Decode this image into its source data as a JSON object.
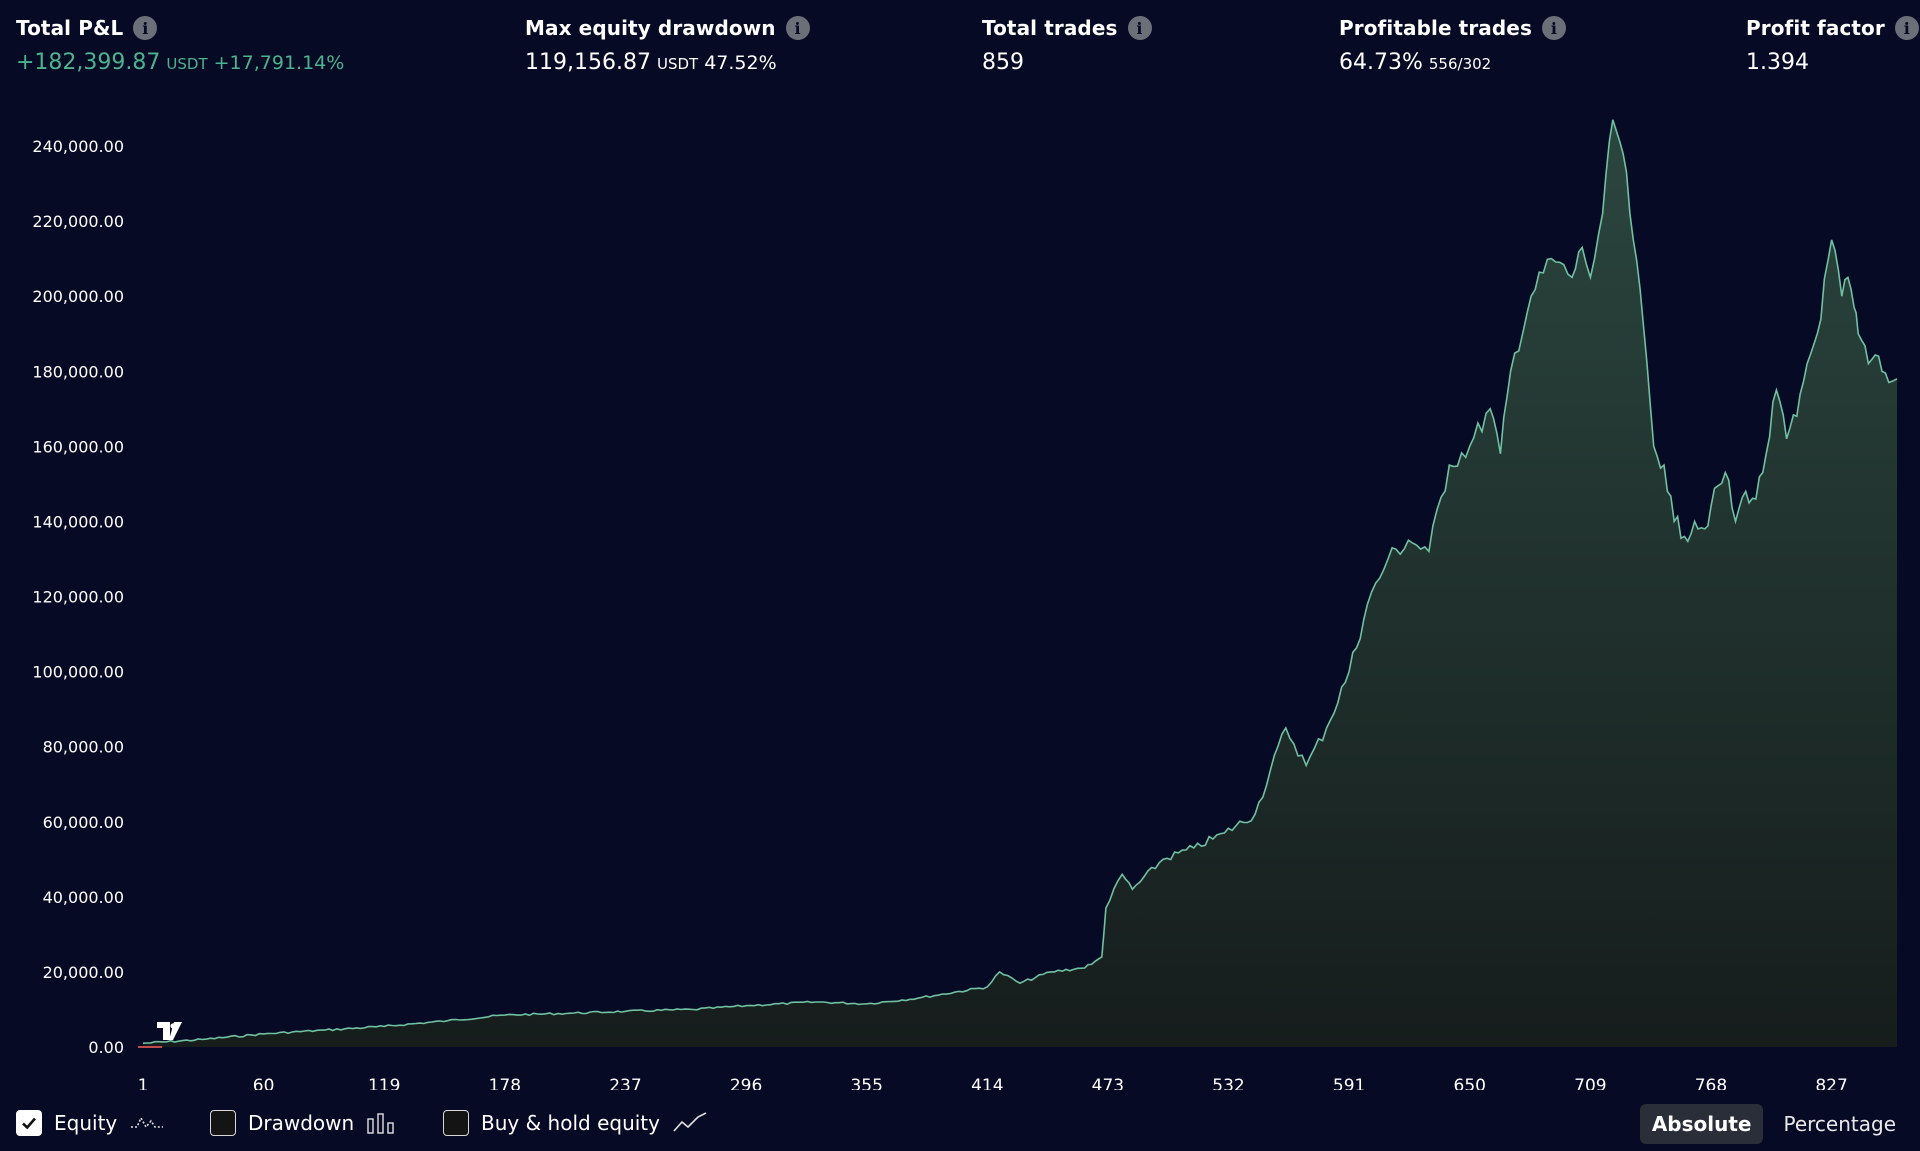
{
  "stats": {
    "total_pnl": {
      "label": "Total P&L",
      "value": "+182,399.87",
      "unit": "USDT",
      "percent": "+17,791.14%"
    },
    "max_drawdown": {
      "label": "Max equity drawdown",
      "value": "119,156.87",
      "unit": "USDT",
      "percent": "47.52%"
    },
    "total_trades": {
      "label": "Total trades",
      "value": "859"
    },
    "profitable_trades": {
      "label": "Profitable trades",
      "value": "64.73%",
      "ratio": "556/302"
    },
    "profit_factor": {
      "label": "Profit factor",
      "value": "1.394"
    }
  },
  "legend": {
    "equity": {
      "label": "Equity",
      "checked": true
    },
    "drawdown": {
      "label": "Drawdown",
      "checked": false
    },
    "buy_hold": {
      "label": "Buy & hold equity",
      "checked": false
    }
  },
  "mode": {
    "absolute": "Absolute",
    "percentage": "Percentage",
    "selected": "Absolute"
  },
  "colors": {
    "background": "#070a24",
    "equity_line": "#6fc1a2",
    "profit_green": "#4bb38f"
  },
  "chart_data": {
    "type": "area",
    "y_ticks": [
      "240,000.00",
      "220,000.00",
      "200,000.00",
      "180,000.00",
      "160,000.00",
      "140,000.00",
      "120,000.00",
      "100,000.00",
      "80,000.00",
      "60,000.00",
      "40,000.00",
      "20,000.00",
      "0.00"
    ],
    "x_ticks": [
      "1",
      "60",
      "119",
      "178",
      "237",
      "296",
      "355",
      "414",
      "473",
      "532",
      "591",
      "650",
      "709",
      "768",
      "827"
    ],
    "xlim": [
      1,
      859
    ],
    "ylim": [
      0,
      240000
    ],
    "x": [
      1,
      30,
      60,
      90,
      119,
      150,
      178,
      210,
      237,
      270,
      296,
      330,
      355,
      380,
      414,
      420,
      430,
      445,
      460,
      465,
      470,
      472,
      480,
      485,
      500,
      515,
      530,
      545,
      560,
      570,
      580,
      591,
      600,
      610,
      620,
      630,
      640,
      650,
      660,
      665,
      670,
      680,
      690,
      700,
      705,
      709,
      715,
      720,
      725,
      730,
      735,
      740,
      745,
      750,
      755,
      760,
      765,
      768,
      775,
      780,
      785,
      790,
      795,
      800,
      805,
      810,
      815,
      820,
      827,
      832,
      835,
      838,
      840,
      845,
      850,
      855,
      859
    ],
    "y": [
      1000,
      2000,
      3500,
      4500,
      5500,
      7000,
      8500,
      9000,
      9500,
      10000,
      11000,
      12000,
      11500,
      13000,
      16000,
      20000,
      17000,
      20000,
      21000,
      22000,
      24000,
      37000,
      46000,
      42000,
      50000,
      53000,
      57000,
      62000,
      85000,
      75000,
      85000,
      100000,
      118000,
      130000,
      135000,
      132000,
      155000,
      160000,
      170000,
      158000,
      180000,
      200000,
      210000,
      205000,
      213000,
      205000,
      222000,
      247000,
      238000,
      215000,
      192000,
      160000,
      155000,
      140000,
      136000,
      140000,
      138000,
      144000,
      153000,
      140000,
      148000,
      146000,
      158000,
      175000,
      162000,
      168000,
      182000,
      190000,
      215000,
      200000,
      205000,
      197000,
      190000,
      182000,
      184000,
      177000,
      178000
    ],
    "y_ranges_note": ""
  }
}
